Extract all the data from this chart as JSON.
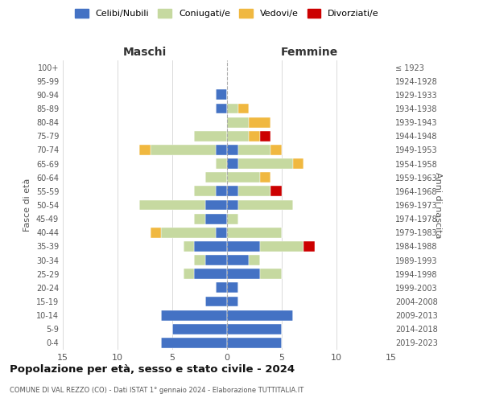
{
  "age_groups_bottom_to_top": [
    "0-4",
    "5-9",
    "10-14",
    "15-19",
    "20-24",
    "25-29",
    "30-34",
    "35-39",
    "40-44",
    "45-49",
    "50-54",
    "55-59",
    "60-64",
    "65-69",
    "70-74",
    "75-79",
    "80-84",
    "85-89",
    "90-94",
    "95-99",
    "100+"
  ],
  "birth_years_bottom_to_top": [
    "2019-2023",
    "2014-2018",
    "2009-2013",
    "2004-2008",
    "1999-2003",
    "1994-1998",
    "1989-1993",
    "1984-1988",
    "1979-1983",
    "1974-1978",
    "1969-1973",
    "1964-1968",
    "1959-1963",
    "1954-1958",
    "1949-1953",
    "1944-1948",
    "1939-1943",
    "1934-1938",
    "1929-1933",
    "1924-1928",
    "≤ 1923"
  ],
  "maschi": {
    "celibi": [
      6,
      5,
      6,
      2,
      1,
      3,
      2,
      3,
      1,
      2,
      2,
      1,
      0,
      0,
      1,
      0,
      0,
      1,
      1,
      0,
      0
    ],
    "coniugati": [
      0,
      0,
      0,
      0,
      0,
      1,
      1,
      1,
      5,
      1,
      6,
      2,
      2,
      1,
      6,
      3,
      0,
      0,
      0,
      0,
      0
    ],
    "vedovi": [
      0,
      0,
      0,
      0,
      0,
      0,
      0,
      0,
      1,
      0,
      0,
      0,
      0,
      0,
      1,
      0,
      0,
      0,
      0,
      0,
      0
    ],
    "divorziati": [
      0,
      0,
      0,
      0,
      0,
      0,
      0,
      0,
      0,
      0,
      0,
      0,
      0,
      0,
      0,
      0,
      0,
      0,
      0,
      0,
      0
    ]
  },
  "femmine": {
    "celibi": [
      5,
      5,
      6,
      1,
      1,
      3,
      2,
      3,
      0,
      0,
      1,
      1,
      0,
      1,
      1,
      0,
      0,
      0,
      0,
      0,
      0
    ],
    "coniugati": [
      0,
      0,
      0,
      0,
      0,
      2,
      1,
      4,
      5,
      1,
      5,
      3,
      3,
      5,
      3,
      2,
      2,
      1,
      0,
      0,
      0
    ],
    "vedovi": [
      0,
      0,
      0,
      0,
      0,
      0,
      0,
      0,
      0,
      0,
      0,
      0,
      1,
      1,
      1,
      1,
      2,
      1,
      0,
      0,
      0
    ],
    "divorziati": [
      0,
      0,
      0,
      0,
      0,
      0,
      0,
      1,
      0,
      0,
      0,
      1,
      0,
      0,
      0,
      1,
      0,
      0,
      0,
      0,
      0
    ]
  },
  "colors": {
    "celibi": "#4472c4",
    "coniugati": "#c6d9a0",
    "vedovi": "#f0b840",
    "divorziati": "#cc0000"
  },
  "legend_labels": [
    "Celibi/Nubili",
    "Coniugati/e",
    "Vedovi/e",
    "Divorziati/e"
  ],
  "title": "Popolazione per età, sesso e stato civile - 2024",
  "subtitle": "COMUNE DI VAL REZZO (CO) - Dati ISTAT 1° gennaio 2024 - Elaborazione TUTTITALIA.IT",
  "xlabel_left": "Maschi",
  "xlabel_right": "Femmine",
  "ylabel_left": "Fasce di età",
  "ylabel_right": "Anni di nascita",
  "xlim": 15,
  "bg_color": "#ffffff",
  "grid_color": "#cccccc"
}
